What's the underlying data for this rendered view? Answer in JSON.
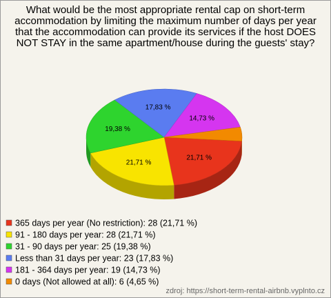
{
  "chart_data": {
    "type": "pie",
    "title": "What would be the most appropriate rental cap on short-term accommodation by limiting the maximum number of days per year that the accommodation can provide its services if the host DOES NOT STAY in the same apartment/house during the guests' stay?",
    "categories": [
      "365 days per year (No restriction): 28 (21,71 %)",
      "91 - 180 days per year: 28 (21,71 %)",
      "31 - 90 days per year: 25 (19,38 %)",
      "Less than 31 days per year: 23 (17,83 %)",
      "181 - 364 days per year: 19 (14,73 %)",
      "0 days (Not allowed at all): 6 (4,65 %)"
    ],
    "values": [
      21.71,
      21.71,
      19.38,
      17.83,
      14.73,
      4.65
    ],
    "value_labels": [
      "21,71 %",
      "21,71 %",
      "19,38 %",
      "17,83 %",
      "14,73 %",
      null
    ],
    "colors": [
      "#e8341c",
      "#f8e400",
      "#2ed42e",
      "#5a7cf0",
      "#d535f0",
      "#f28a00"
    ],
    "legend": "bottom-left",
    "source": "zdroj: https://short-term-rental-airbnb.vyplnto.cz"
  }
}
